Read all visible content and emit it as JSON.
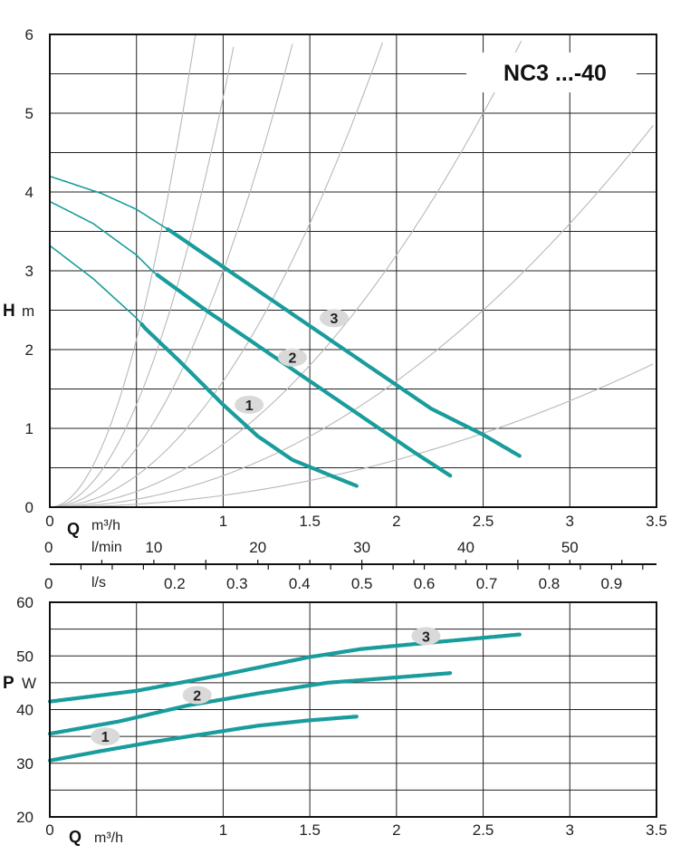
{
  "colors": {
    "curve": "#1a9c9c",
    "grid": "#222222",
    "system_curve": "#b8b8b8",
    "badge": "#d9d9d9"
  },
  "chart_data": [
    {
      "type": "line",
      "model_label": "NC3 ...-40",
      "ylabel_symbol": "H",
      "ylabel_unit": "m",
      "x_axes": [
        {
          "symbol": "Q",
          "unit": "m³/h",
          "min": 0,
          "max": 3.5,
          "ticks": [
            "0",
            "1",
            "1.5",
            "2",
            "2.5",
            "3",
            "3.5"
          ],
          "tick_values": [
            0,
            1,
            1.5,
            2,
            2.5,
            3,
            3.5
          ]
        },
        {
          "unit": "l/min",
          "zero": "0",
          "min": 0,
          "max": 58.33,
          "ticks": [
            "10",
            "20",
            "30",
            "40",
            "50"
          ],
          "tick_values": [
            10,
            20,
            30,
            40,
            50
          ]
        },
        {
          "unit": "l/s",
          "zero": "0",
          "min": 0,
          "max": 0.972,
          "ticks": [
            "0.2",
            "0.3",
            "0.4",
            "0.5",
            "0.6",
            "0.7",
            "0.8",
            "0.9"
          ],
          "tick_values": [
            0.2,
            0.3,
            0.4,
            0.5,
            0.6,
            0.7,
            0.8,
            0.9
          ]
        }
      ],
      "ylim": [
        0,
        6
      ],
      "yticks": [
        "0",
        "1",
        "2",
        "3",
        "4",
        "5",
        "6"
      ],
      "grid": true,
      "system_curve_coefficients": [
        0.15,
        0.4,
        0.8,
        1.6,
        3.0,
        5.2,
        8.5
      ],
      "series": [
        {
          "label": "1",
          "label_at": [
            1.15,
            1.3
          ],
          "x_full": [
            0,
            0.25,
            0.5,
            0.55,
            0.75,
            1.0,
            1.2,
            1.4,
            1.6,
            1.77
          ],
          "y_full": [
            3.32,
            2.9,
            2.4,
            2.27,
            1.85,
            1.3,
            0.9,
            0.6,
            0.42,
            0.27
          ],
          "thick_from": 0.53
        },
        {
          "label": "2",
          "label_at": [
            1.4,
            1.9
          ],
          "x_full": [
            0,
            0.25,
            0.5,
            0.6,
            0.9,
            1.2,
            1.5,
            1.8,
            2.1,
            2.31
          ],
          "y_full": [
            3.88,
            3.6,
            3.2,
            2.98,
            2.5,
            2.05,
            1.6,
            1.15,
            0.7,
            0.4
          ],
          "thick_from": 0.62
        },
        {
          "label": "3",
          "label_at": [
            1.64,
            2.4
          ],
          "x_full": [
            0,
            0.3,
            0.5,
            0.7,
            1.0,
            1.3,
            1.6,
            1.9,
            2.2,
            2.5,
            2.71
          ],
          "y_full": [
            4.2,
            3.98,
            3.78,
            3.5,
            3.05,
            2.6,
            2.15,
            1.7,
            1.25,
            0.92,
            0.65
          ],
          "thick_from": 0.68
        }
      ]
    },
    {
      "type": "line",
      "ylabel_symbol": "P",
      "ylabel_unit": "W",
      "xlabel_symbol": "Q",
      "xlabel_unit": "m³/h",
      "xlim": [
        0,
        3.5
      ],
      "xticks": [
        "0",
        "1",
        "1.5",
        "2",
        "2.5",
        "3",
        "3.5"
      ],
      "xtick_values": [
        0,
        1,
        1.5,
        2,
        2.5,
        3,
        3.5
      ],
      "ylim": [
        20,
        60
      ],
      "yticks": [
        "20",
        "30",
        "40",
        "50",
        "60"
      ],
      "grid": true,
      "series": [
        {
          "label": "1",
          "label_at": [
            0.32,
            35
          ],
          "x": [
            0,
            0.3,
            0.6,
            0.9,
            1.2,
            1.5,
            1.77
          ],
          "y": [
            30.5,
            32.3,
            34.0,
            35.5,
            37.0,
            38.0,
            38.7
          ]
        },
        {
          "label": "2",
          "label_at": [
            0.85,
            42.7
          ],
          "x": [
            0,
            0.4,
            0.8,
            1.2,
            1.6,
            2.0,
            2.31
          ],
          "y": [
            35.5,
            37.8,
            40.8,
            43.0,
            45.0,
            46.0,
            46.8
          ]
        },
        {
          "label": "3",
          "label_at": [
            2.17,
            53.7
          ],
          "x": [
            0,
            0.5,
            1.0,
            1.5,
            1.8,
            2.2,
            2.71
          ],
          "y": [
            41.5,
            43.5,
            46.5,
            49.8,
            51.3,
            52.5,
            54.0
          ]
        }
      ]
    }
  ]
}
